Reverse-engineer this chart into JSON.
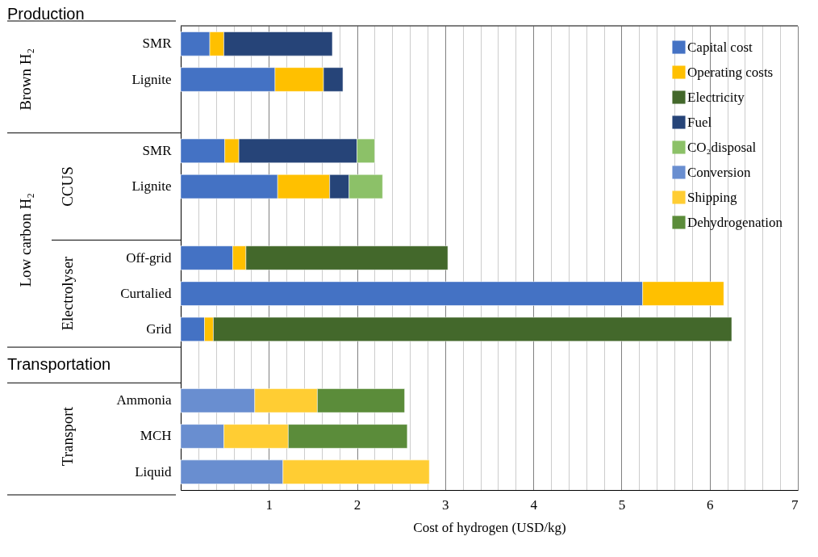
{
  "chart_data": {
    "type": "bar",
    "orientation": "horizontal",
    "stacked": true,
    "xlabel": "Cost of hydrogen (USD/kg)",
    "categories": [
      "SMR",
      "Lignite",
      null,
      "SMR",
      "Lignite",
      null,
      "Off-grid",
      "Curtalied",
      "Grid",
      null,
      "Ammonia",
      "MCH",
      "Liquid"
    ],
    "series": [
      {
        "name": "Capital cost",
        "color": "#4472c4",
        "values": [
          0.33,
          1.07,
          null,
          0.5,
          1.1,
          null,
          0.59,
          5.24,
          0.27,
          null,
          null,
          null,
          null
        ]
      },
      {
        "name": "Operating costs",
        "color": "#ffc000",
        "values": [
          0.16,
          0.55,
          null,
          0.16,
          0.59,
          null,
          0.15,
          0.92,
          0.1,
          null,
          null,
          null,
          null
        ]
      },
      {
        "name": "Electricity",
        "color": "#43682b",
        "values": [
          null,
          null,
          null,
          null,
          null,
          null,
          2.29,
          null,
          5.88,
          null,
          null,
          null,
          null
        ]
      },
      {
        "name": "Fuel",
        "color": "#264478",
        "values": [
          1.23,
          0.22,
          null,
          1.34,
          0.22,
          null,
          null,
          null,
          null,
          null,
          null,
          null,
          null
        ]
      },
      {
        "name": "CO₂disposal",
        "color": "#8cc168",
        "values": [
          null,
          null,
          null,
          0.2,
          0.38,
          null,
          null,
          null,
          null,
          null,
          null,
          null,
          null
        ]
      },
      {
        "name": "Conversion",
        "color": "#698ed0",
        "values": [
          null,
          null,
          null,
          null,
          null,
          null,
          null,
          null,
          null,
          null,
          0.84,
          0.49,
          1.16
        ]
      },
      {
        "name": "Shipping",
        "color": "#ffcd33",
        "values": [
          null,
          null,
          null,
          null,
          null,
          null,
          null,
          null,
          null,
          null,
          0.71,
          0.73,
          1.66
        ]
      },
      {
        "name": "Dehydrogenation",
        "color": "#5b8c3a",
        "values": [
          null,
          null,
          null,
          null,
          null,
          null,
          null,
          null,
          null,
          null,
          0.99,
          1.35,
          null
        ]
      }
    ],
    "xlim": [
      0,
      7
    ],
    "xticks": [
      {
        "value": 0,
        "label": null
      },
      {
        "value": 0.2,
        "label": null
      },
      {
        "value": 0.4,
        "label": null
      },
      {
        "value": 0.6,
        "label": null
      },
      {
        "value": 0.8,
        "label": null
      },
      1,
      {
        "value": 1.2,
        "label": null
      },
      {
        "value": 1.4,
        "label": null
      },
      {
        "value": 1.6,
        "label": null
      },
      {
        "value": 1.8,
        "label": null
      },
      2,
      {
        "value": 2.2,
        "label": null
      },
      {
        "value": 2.4,
        "label": null
      },
      {
        "value": 2.6,
        "label": null
      },
      {
        "value": 2.8,
        "label": null
      },
      3,
      {
        "value": 3.2,
        "label": null
      },
      {
        "value": 3.4,
        "label": null
      },
      {
        "value": 3.6,
        "label": null
      },
      {
        "value": 3.8,
        "label": null
      },
      4,
      {
        "value": 4.2,
        "label": null
      },
      {
        "value": 4.4,
        "label": null
      },
      {
        "value": 4.6,
        "label": null
      },
      {
        "value": 4.8,
        "label": null
      },
      5,
      {
        "value": 5.2,
        "label": null
      },
      {
        "value": 5.4,
        "label": null
      },
      {
        "value": 5.6,
        "label": null
      },
      {
        "value": 5.8,
        "label": null
      },
      6,
      {
        "value": 6.2,
        "label": null
      },
      {
        "value": 6.4,
        "label": null
      },
      {
        "value": 6.6,
        "label": null
      },
      {
        "value": 6.8,
        "label": null
      },
      7
    ],
    "grid": "x",
    "legend": "top right",
    "annotations": [
      "Production",
      "Brown H₂",
      "Low carbon H₂",
      "CCUS",
      "Electrolyser",
      "Transportation",
      "Transport"
    ]
  }
}
